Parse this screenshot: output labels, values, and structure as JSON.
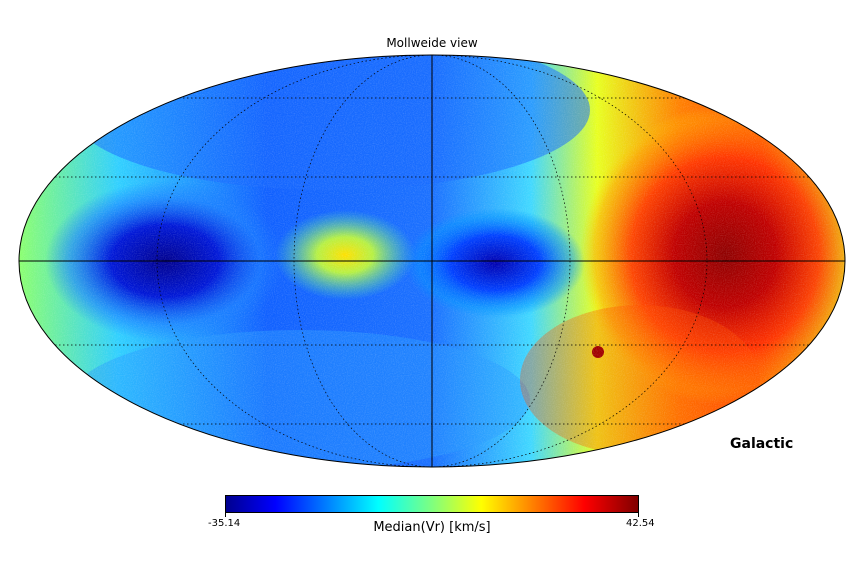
{
  "title": "Mollweide view",
  "coordinate_system": "Galactic",
  "colorbar": {
    "label": "Median(Vr) [km/s]",
    "min_label": "-35.14",
    "max_label": "42.54",
    "min": -35.14,
    "max": 42.54,
    "colormap": "jet"
  },
  "projection": "mollweide",
  "graticule": true,
  "sky_features": [
    {
      "name": "negative lobe west",
      "lon_deg": 120,
      "lat_deg": 0,
      "value": -35
    },
    {
      "name": "negative lobe center",
      "lon_deg": -20,
      "lat_deg": 0,
      "value": -28
    },
    {
      "name": "positive lobe east",
      "lon_deg": -120,
      "lat_deg": 0,
      "value": 42
    },
    {
      "name": "near-zero bulge",
      "lon_deg": 35,
      "lat_deg": 0,
      "value": 2
    }
  ]
}
